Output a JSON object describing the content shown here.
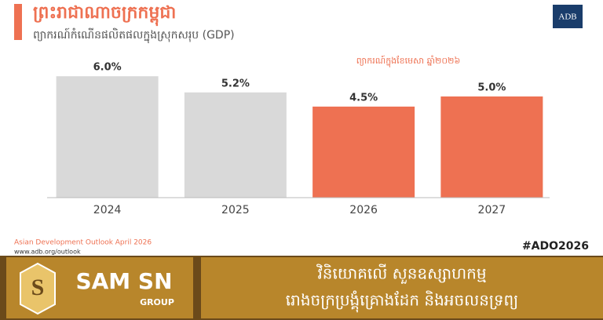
{
  "chart_data": {
    "type": "bar",
    "title": "ព្រះរាជាណាចក្រកម្ពុជា",
    "subtitle": "ព្យាករណ៍កំណើនផលិតផលក្នុងស្រុកសរុប (GDP)",
    "annotation": "ព្យាករណ៍ក្នុងខែមេសា ឆ្នាំ២០២៦",
    "categories": [
      "2024",
      "2025",
      "2026",
      "2027"
    ],
    "values": [
      6.0,
      5.2,
      4.5,
      5.0
    ],
    "value_labels": [
      "6.0%",
      "5.2%",
      "4.5%",
      "5.0%"
    ],
    "colors": [
      "#d9d9d9",
      "#d9d9d9",
      "#ee7152",
      "#ee7152"
    ]
  },
  "logo": "ADB",
  "source": {
    "name": "Asian Development Outlook April 2026",
    "url": "www.adb.org/outlook"
  },
  "hashtag": "#ADO2026",
  "brand": {
    "name": "SAM SN",
    "group": "GROUP"
  },
  "banner": {
    "line1": "វិនិយោគលើ សួនឧស្សាហកម្ម",
    "line2": "រោងចក្រប្រង្គុំគ្រោងដែក និងអចលនទ្រព្យ"
  }
}
